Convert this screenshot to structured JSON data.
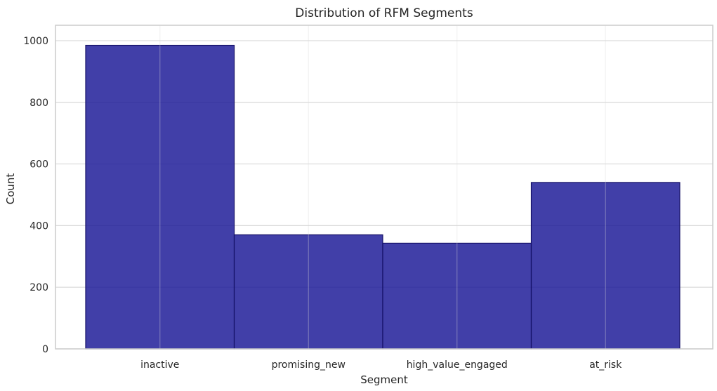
{
  "chart_data": {
    "type": "bar",
    "title": "Distribution of RFM Segments",
    "xlabel": "Segment",
    "ylabel": "Count",
    "categories": [
      "inactive",
      "promising_new",
      "high_value_engaged",
      "at_risk"
    ],
    "values": [
      985,
      370,
      343,
      540
    ],
    "ylim": [
      0,
      1050
    ],
    "yticks": [
      0,
      200,
      400,
      600,
      800,
      1000
    ],
    "grid": true,
    "bar_color": "#1b1896",
    "bar_edge_color": "#141066",
    "background_color": "#ffffff",
    "grid_color": "#d9d9d9",
    "axes_edge_color": "#cccccc"
  }
}
